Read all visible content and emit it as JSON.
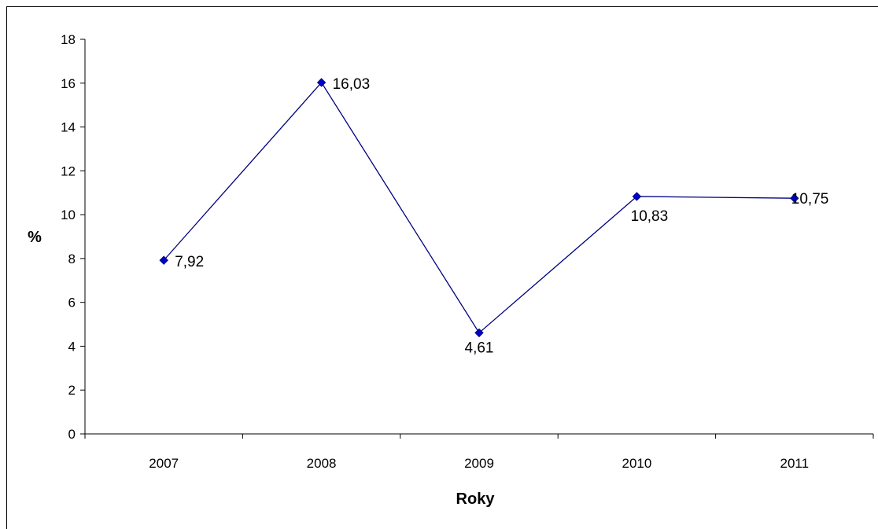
{
  "chart_data": {
    "type": "line",
    "title": "",
    "xlabel": "Roky",
    "ylabel": "%",
    "categories": [
      "2007",
      "2008",
      "2009",
      "2010",
      "2011"
    ],
    "series": [
      {
        "values": [
          7.92,
          16.03,
          4.61,
          10.83,
          10.75
        ],
        "value_labels": [
          "7,92",
          "16,03",
          "4,61",
          "10,83",
          "10,75"
        ],
        "color": "#000080",
        "marker": "diamond",
        "marker_color": "#0000CC"
      }
    ],
    "ylim": [
      0,
      18
    ],
    "yticks": [
      0,
      2,
      4,
      6,
      8,
      10,
      12,
      14,
      16,
      18
    ],
    "grid": false,
    "legend": "none"
  }
}
